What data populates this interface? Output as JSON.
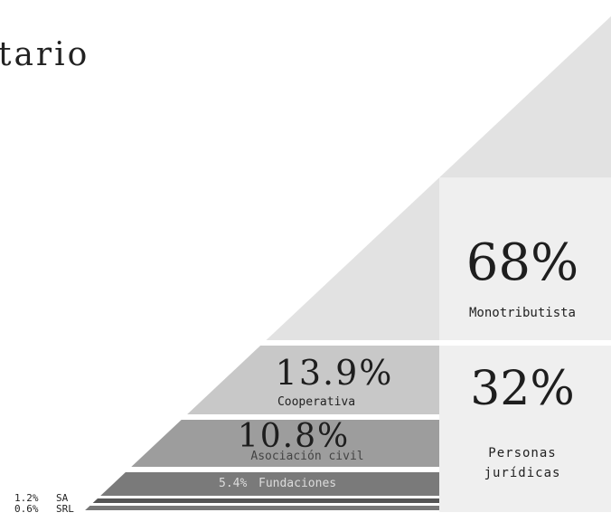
{
  "title": "tario",
  "chart_data": {
    "type": "stacked-triangle",
    "groups": [
      {
        "key": "monotributista",
        "label": "Monotributista",
        "value_label": "68%",
        "value": 68
      },
      {
        "key": "personas_juridicas",
        "label": "Personas jurídicas",
        "label_line1": "Personas",
        "label_line2": "jurídicas",
        "value_label": "32%",
        "value": 32,
        "breakdown": [
          {
            "label": "Cooperativa",
            "value_label": "13.9%",
            "value": 13.9
          },
          {
            "label": "Asociación civil",
            "value_label": "10.8%",
            "value": 10.8
          },
          {
            "label": "Fundaciones",
            "value_label": "5.4%",
            "value": 5.4
          },
          {
            "label": "SA",
            "value_label": "1.2%",
            "value": 1.2
          },
          {
            "label": "SRL",
            "value_label": "0.6%",
            "value": 0.6
          }
        ]
      }
    ],
    "colors": {
      "monotributista": "#e2e2e2",
      "monotributista_panel": "#efefef",
      "personas_panel": "#efefef",
      "cooperativa": "#c8c8c8",
      "asociacion": "#9d9d9d",
      "fundaciones": "#7a7a7a",
      "sa": "#555555",
      "srl": "#777777"
    }
  }
}
